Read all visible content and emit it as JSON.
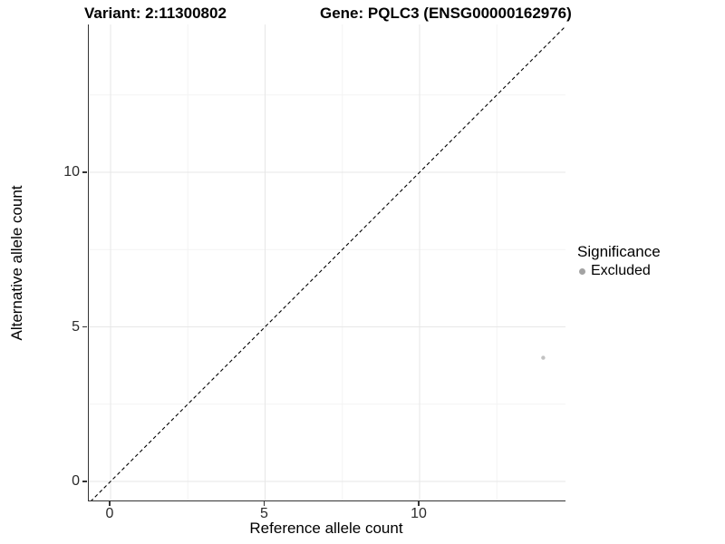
{
  "header": {
    "variant_title": "Variant: 2:11300802",
    "gene_title": "Gene: PQLC3 (ENSG00000162976)"
  },
  "legend": {
    "title": "Significance",
    "items": [
      {
        "label": "Excluded",
        "marker_color": "#a3a3a3"
      }
    ]
  },
  "chart_data": {
    "type": "scatter",
    "title": "Variant: 2:11300802   Gene: PQLC3 (ENSG00000162976)",
    "xlabel": "Reference allele count",
    "ylabel": "Alternative allele count",
    "xlim": [
      -0.7,
      14.75
    ],
    "ylim": [
      -0.65,
      14.8
    ],
    "x_ticks": [
      0,
      5,
      10
    ],
    "y_ticks": [
      0,
      5,
      10
    ],
    "x_minor_ticks": [
      2.5,
      7.5,
      12.5
    ],
    "y_minor_ticks": [
      2.5,
      7.5,
      12.5
    ],
    "grid": true,
    "legend_position": "right",
    "legend_title": "Significance",
    "series": [
      {
        "name": "Excluded",
        "color": "#c2c2c2",
        "points": [
          {
            "x": 14,
            "y": 4
          }
        ]
      }
    ],
    "reference_line": {
      "kind": "identity",
      "slope": 1,
      "intercept": 0,
      "style": "dashed",
      "color": "#000000"
    }
  },
  "colors": {
    "grid_major": "#e7e7e7",
    "grid_minor": "#f3f3f3",
    "axis_line": "#333333",
    "tick_label": "#2b2b2b",
    "background": "#ffffff"
  }
}
